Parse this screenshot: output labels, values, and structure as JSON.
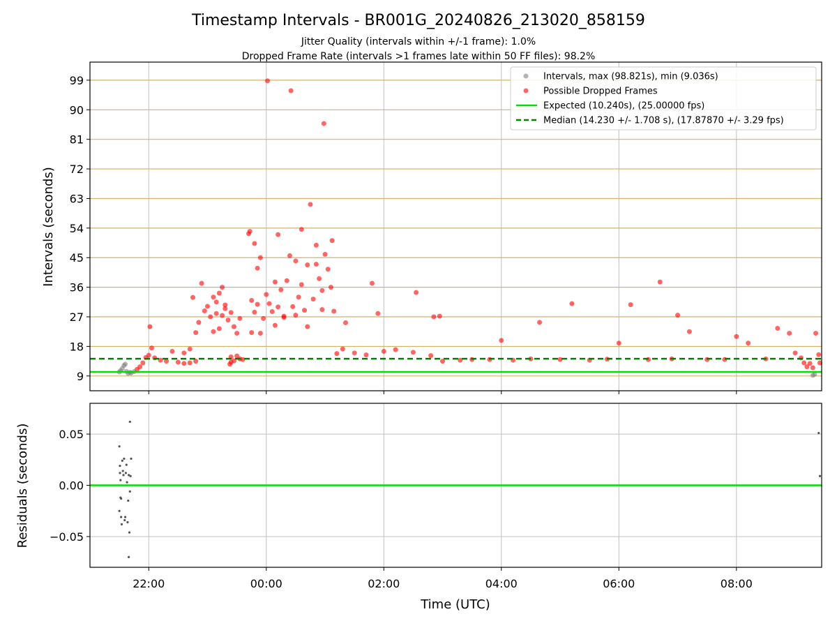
{
  "header": {
    "title": "Timestamp Intervals - BR001G_20240826_213020_858159",
    "subtitle_1": "Jitter Quality (intervals within +/-1 frame): 1.0%",
    "subtitle_2": "Dropped Frame Rate (intervals >1 frames late within 50 FF files): 98.2%"
  },
  "colors": {
    "intervals": "#808080",
    "dropped": "#ff0000",
    "expected": "#00e000",
    "median": "#008000",
    "hline": "#d4b26b",
    "grid": "#c0c0c0",
    "residuals": "#555555"
  },
  "chart_data": [
    {
      "type": "scatter",
      "name": "intervals",
      "xlabel": "",
      "ylabel": "Intervals (seconds)",
      "x_range_hours": [
        -3.0,
        9.45
      ],
      "ylim": [
        4.5,
        104.5
      ],
      "y_ticks": [
        9,
        18,
        27,
        36,
        45,
        54,
        63,
        72,
        81,
        90,
        99
      ],
      "y_tick_labels": [
        "9",
        "18",
        "27",
        "36",
        "45",
        "54",
        "63",
        "72",
        "81",
        "90",
        "99"
      ],
      "x_ticks_hours": [
        -2,
        0,
        2,
        4,
        6,
        8
      ],
      "grid": true,
      "legend_position": "top-right",
      "legend": [
        "Intervals, max (98.821s), min (9.036s)",
        "Possible Dropped Frames",
        "Expected (10.240s), (25.00000 fps)",
        "Median (14.230 +/- 1.708 s), (17.87870 +/- 3.29 fps)"
      ],
      "expected_line": 10.24,
      "median_line": 14.23,
      "series": [
        {
          "name": "Intervals, max (98.821s), min (9.036s)",
          "points": [
            [
              -2.5,
              10.2
            ],
            [
              -2.48,
              10.6
            ],
            [
              -2.45,
              11.3
            ],
            [
              -2.42,
              12.2
            ],
            [
              -2.4,
              12.6
            ],
            [
              -2.38,
              10.4
            ],
            [
              -2.35,
              9.8
            ],
            [
              -2.32,
              10.1
            ],
            [
              -2.3,
              9.9
            ],
            [
              -2.25,
              10.3
            ],
            [
              9.3,
              9.2
            ],
            [
              9.33,
              9.5
            ]
          ]
        },
        {
          "name": "Possible Dropped Frames",
          "points": [
            [
              -2.2,
              11.0
            ],
            [
              -2.15,
              11.8
            ],
            [
              -2.1,
              13.0
            ],
            [
              -2.05,
              14.6
            ],
            [
              -2.0,
              15.3
            ],
            [
              -1.98,
              24.0
            ],
            [
              -1.95,
              17.5
            ],
            [
              -1.9,
              14.5
            ],
            [
              -1.8,
              13.8
            ],
            [
              -1.7,
              13.5
            ],
            [
              -1.6,
              16.5
            ],
            [
              -1.5,
              13.2
            ],
            [
              -1.4,
              12.8
            ],
            [
              -1.3,
              13.0
            ],
            [
              -1.2,
              13.5
            ],
            [
              -1.4,
              16.0
            ],
            [
              -1.3,
              17.2
            ],
            [
              -1.25,
              32.9
            ],
            [
              -1.2,
              22.2
            ],
            [
              -1.15,
              25.3
            ],
            [
              -1.1,
              37.2
            ],
            [
              -1.05,
              28.8
            ],
            [
              -1.0,
              30.2
            ],
            [
              -0.95,
              27.0
            ],
            [
              -0.9,
              33.0
            ],
            [
              -0.85,
              31.5
            ],
            [
              -0.8,
              23.4
            ],
            [
              -0.75,
              36.0
            ],
            [
              -0.7,
              29.5
            ],
            [
              -0.65,
              26.0
            ],
            [
              -0.6,
              28.3
            ],
            [
              -0.55,
              24.0
            ],
            [
              -0.5,
              22.0
            ],
            [
              -0.45,
              26.5
            ],
            [
              -0.8,
              34.2
            ],
            [
              -0.85,
              28.0
            ],
            [
              -0.7,
              30.6
            ],
            [
              -0.75,
              27.4
            ],
            [
              -0.9,
              22.5
            ],
            [
              -0.6,
              14.8
            ],
            [
              -0.55,
              13.6
            ],
            [
              -0.5,
              15.1
            ],
            [
              -0.45,
              14.2
            ],
            [
              -0.6,
              13.2
            ],
            [
              -0.4,
              14.0
            ],
            [
              -0.62,
              12.6
            ],
            [
              -0.3,
              52.3
            ],
            [
              -0.28,
              53.0
            ],
            [
              -0.25,
              32.0
            ],
            [
              -0.2,
              28.4
            ],
            [
              -0.15,
              30.8
            ],
            [
              -0.1,
              22.0
            ],
            [
              -0.05,
              26.5
            ],
            [
              0.0,
              33.8
            ],
            [
              0.02,
              98.8
            ],
            [
              0.05,
              31.0
            ],
            [
              0.1,
              28.6
            ],
            [
              0.15,
              24.4
            ],
            [
              0.2,
              30.0
            ],
            [
              0.25,
              35.2
            ],
            [
              0.3,
              26.8
            ],
            [
              0.35,
              38.0
            ],
            [
              0.4,
              45.6
            ],
            [
              0.42,
              95.8
            ],
            [
              0.45,
              30.1
            ],
            [
              0.5,
              27.5
            ],
            [
              0.55,
              33.0
            ],
            [
              0.6,
              36.8
            ],
            [
              0.65,
              29.0
            ],
            [
              0.7,
              24.0
            ],
            [
              0.75,
              61.2
            ],
            [
              0.8,
              32.4
            ],
            [
              0.85,
              43.0
            ],
            [
              0.9,
              38.6
            ],
            [
              0.95,
              35.0
            ],
            [
              0.98,
              85.8
            ],
            [
              1.0,
              46.0
            ],
            [
              1.05,
              41.5
            ],
            [
              1.1,
              36.0
            ],
            [
              1.12,
              50.2
            ],
            [
              1.15,
              28.7
            ],
            [
              -0.2,
              49.3
            ],
            [
              -0.1,
              45.0
            ],
            [
              0.2,
              52.0
            ],
            [
              0.5,
              44.0
            ],
            [
              -0.15,
              41.8
            ],
            [
              0.7,
              42.8
            ],
            [
              0.85,
              48.8
            ],
            [
              0.6,
              53.6
            ],
            [
              0.95,
              29.2
            ],
            [
              0.3,
              27.2
            ],
            [
              -0.25,
              22.2
            ],
            [
              0.15,
              37.6
            ],
            [
              1.2,
              15.8
            ],
            [
              1.3,
              17.2
            ],
            [
              1.35,
              25.2
            ],
            [
              1.5,
              16.0
            ],
            [
              1.7,
              15.4
            ],
            [
              1.8,
              37.2
            ],
            [
              1.9,
              28.0
            ],
            [
              2.0,
              16.5
            ],
            [
              2.2,
              17.0
            ],
            [
              2.5,
              16.2
            ],
            [
              2.55,
              34.4
            ],
            [
              2.8,
              15.2
            ],
            [
              2.85,
              27.0
            ],
            [
              2.95,
              27.2
            ],
            [
              3.0,
              13.5
            ],
            [
              3.3,
              13.8
            ],
            [
              3.5,
              14.0
            ],
            [
              3.8,
              14.0
            ],
            [
              4.0,
              19.8
            ],
            [
              4.2,
              13.8
            ],
            [
              4.5,
              14.2
            ],
            [
              4.65,
              25.3
            ],
            [
              5.0,
              14.0
            ],
            [
              5.2,
              31.0
            ],
            [
              5.5,
              13.8
            ],
            [
              5.8,
              14.1
            ],
            [
              6.0,
              19.0
            ],
            [
              6.2,
              30.7
            ],
            [
              6.5,
              14.0
            ],
            [
              6.7,
              37.6
            ],
            [
              6.9,
              14.2
            ],
            [
              7.0,
              27.5
            ],
            [
              7.2,
              22.5
            ],
            [
              7.5,
              14.0
            ],
            [
              7.8,
              14.0
            ],
            [
              8.0,
              21.0
            ],
            [
              8.2,
              19.0
            ],
            [
              8.5,
              14.2
            ],
            [
              8.7,
              23.5
            ],
            [
              8.9,
              22.0
            ],
            [
              9.0,
              16.0
            ],
            [
              9.1,
              14.5
            ],
            [
              9.15,
              13.0
            ],
            [
              9.2,
              11.8
            ],
            [
              9.25,
              12.8
            ],
            [
              9.3,
              11.5
            ],
            [
              9.35,
              22.0
            ],
            [
              9.4,
              15.5
            ],
            [
              9.42,
              13.0
            ]
          ]
        }
      ]
    },
    {
      "type": "scatter",
      "name": "residuals",
      "xlabel": "Time (UTC)",
      "ylabel": "Residuals (seconds)",
      "ylim": [
        -0.08,
        0.08
      ],
      "y_ticks": [
        -0.05,
        0.0,
        0.05
      ],
      "y_tick_labels": [
        "−0.05",
        "0.00",
        "0.05"
      ],
      "x_ticks_hours": [
        -2,
        0,
        2,
        4,
        6,
        8
      ],
      "x_tick_labels": [
        "22:00",
        "00:00",
        "02:00",
        "04:00",
        "06:00",
        "08:00"
      ],
      "grid": true,
      "zero_line": 0.0,
      "points": [
        [
          -2.5,
          0.038
        ],
        [
          -2.49,
          0.019
        ],
        [
          -2.49,
          0.012
        ],
        [
          -2.48,
          0.005
        ],
        [
          -2.48,
          -0.012
        ],
        [
          -2.47,
          -0.013
        ],
        [
          -2.5,
          -0.025
        ],
        [
          -2.47,
          -0.031
        ],
        [
          -2.46,
          -0.038
        ],
        [
          -2.45,
          0.024
        ],
        [
          -2.44,
          0.014
        ],
        [
          -2.43,
          0.01
        ],
        [
          -2.42,
          0.026
        ],
        [
          -2.41,
          -0.034
        ],
        [
          -2.4,
          -0.031
        ],
        [
          -2.39,
          0.012
        ],
        [
          -2.38,
          0.02
        ],
        [
          -2.37,
          0.003
        ],
        [
          -2.36,
          -0.036
        ],
        [
          -2.35,
          -0.015
        ],
        [
          -2.34,
          -0.07
        ],
        [
          -2.33,
          -0.046
        ],
        [
          -2.32,
          0.062
        ],
        [
          -2.31,
          0.009
        ],
        [
          -2.3,
          0.026
        ],
        [
          -2.32,
          -0.006
        ],
        [
          -2.34,
          0.01
        ],
        [
          9.4,
          0.051
        ],
        [
          9.42,
          0.009
        ]
      ]
    }
  ]
}
